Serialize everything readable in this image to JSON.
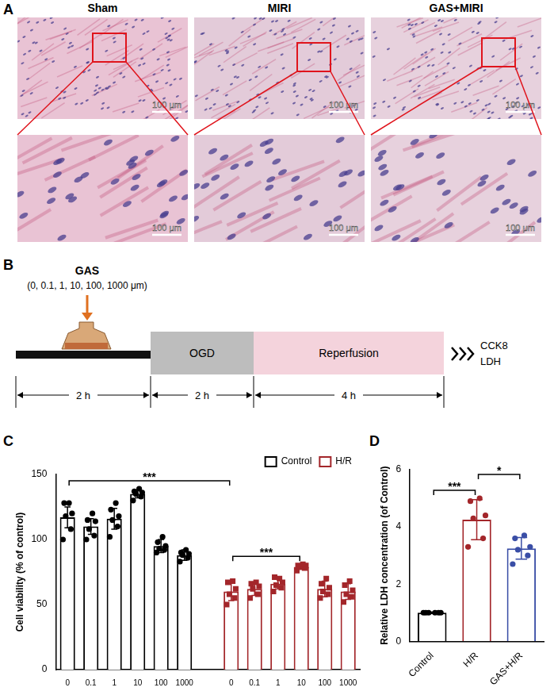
{
  "panel_A": {
    "panel": "A",
    "columns": [
      {
        "title": "Sham",
        "scale_bars": [
          "100 μm",
          "100 μm"
        ]
      },
      {
        "title": "MIRI",
        "scale_bars": [
          "100 μm",
          "100 μm"
        ]
      },
      {
        "title": "GAS+MIRI",
        "scale_bars": [
          "100 μm",
          "100 μm"
        ]
      }
    ]
  },
  "panel_B": {
    "panel": "B",
    "compound": "GAS",
    "concentrations": "(0, 0.1, 1, 10, 100, 1000 μm)",
    "stages": [
      {
        "duration": "2 h"
      },
      {
        "label": "OGD",
        "duration": "2 h"
      },
      {
        "label": "Reperfusion",
        "duration": "4 h"
      }
    ],
    "assays": [
      "CCK8",
      "LDH"
    ]
  },
  "chart_data": [
    {
      "panel": "C",
      "type": "bar",
      "y_label": "Cell viability (% of control)",
      "categories": [
        "0",
        "0.1",
        "1",
        "10",
        "100",
        "1000",
        null,
        "0",
        "0.1",
        "1",
        "10",
        "100",
        "1000"
      ],
      "series": [
        {
          "name": "Control",
          "color": "#000000",
          "marker": "circle",
          "values": [
            117,
            110,
            116,
            135,
            95,
            88,
            null,
            null,
            null,
            null,
            null,
            null,
            null
          ],
          "errors": [
            8,
            6,
            8,
            3,
            5,
            4,
            null,
            null,
            null,
            null,
            null,
            null,
            null
          ],
          "points": [
            [
              100,
              108,
              118,
              120,
              128,
              128
            ],
            [
              100,
              103,
              108,
              114,
              115,
              120
            ],
            [
              102,
              110,
              115,
              118,
              123,
              128
            ],
            [
              130,
              133,
              135,
              136,
              137,
              139
            ],
            [
              90,
              92,
              93,
              95,
              98,
              102
            ],
            [
              83,
              86,
              88,
              89,
              90,
              92
            ],
            null,
            null,
            null,
            null,
            null,
            null,
            null
          ]
        },
        {
          "name": "H/R",
          "color": "#a3262a",
          "marker": "square",
          "values": [
            null,
            null,
            null,
            null,
            null,
            null,
            null,
            60,
            62,
            66,
            79,
            62,
            60
          ],
          "errors": [
            null,
            null,
            null,
            null,
            null,
            null,
            null,
            7,
            5,
            4,
            2,
            6,
            6
          ],
          "points": [
            null,
            null,
            null,
            null,
            null,
            null,
            null,
            [
              50,
              55,
              58,
              62,
              67,
              68
            ],
            [
              55,
              58,
              62,
              64,
              66,
              67
            ],
            [
              60,
              63,
              65,
              67,
              71,
              70
            ],
            [
              76,
              78,
              79,
              80,
              80,
              81
            ],
            [
              55,
              58,
              60,
              63,
              66,
              70
            ],
            [
              52,
              56,
              58,
              61,
              65,
              68
            ]
          ]
        }
      ],
      "ylim": [
        0,
        150
      ],
      "yticks": [
        0,
        50,
        100,
        150
      ],
      "grid": false,
      "legend": "top right",
      "annotations": [
        {
          "text": "***",
          "from": 0,
          "to": 7
        },
        {
          "text": "***",
          "from": 7,
          "to": 10
        }
      ]
    },
    {
      "panel": "D",
      "type": "bar",
      "y_label": "Relative LDH concentration (of Control)",
      "categories": [
        "Control",
        "H/R",
        "GAS+H/R"
      ],
      "values": [
        1,
        4.25,
        3.25
      ],
      "errors": [
        0.02,
        0.7,
        0.38
      ],
      "points": [
        [
          1,
          1,
          1,
          1,
          1,
          1
        ],
        [
          3.3,
          3.6,
          4.3,
          4.4,
          4.9,
          5.0
        ],
        [
          2.7,
          3.0,
          3.2,
          3.3,
          3.6,
          3.7
        ]
      ],
      "colors": [
        "#000000",
        "#a3262a",
        "#3a4ea6"
      ],
      "marker": "circle",
      "ylim": [
        0,
        6
      ],
      "yticks": [
        0,
        2,
        4,
        6
      ],
      "grid": false,
      "annotations": [
        {
          "text": "***",
          "from": 0,
          "to": 1
        },
        {
          "text": "*",
          "from": 1,
          "to": 2
        }
      ]
    }
  ]
}
